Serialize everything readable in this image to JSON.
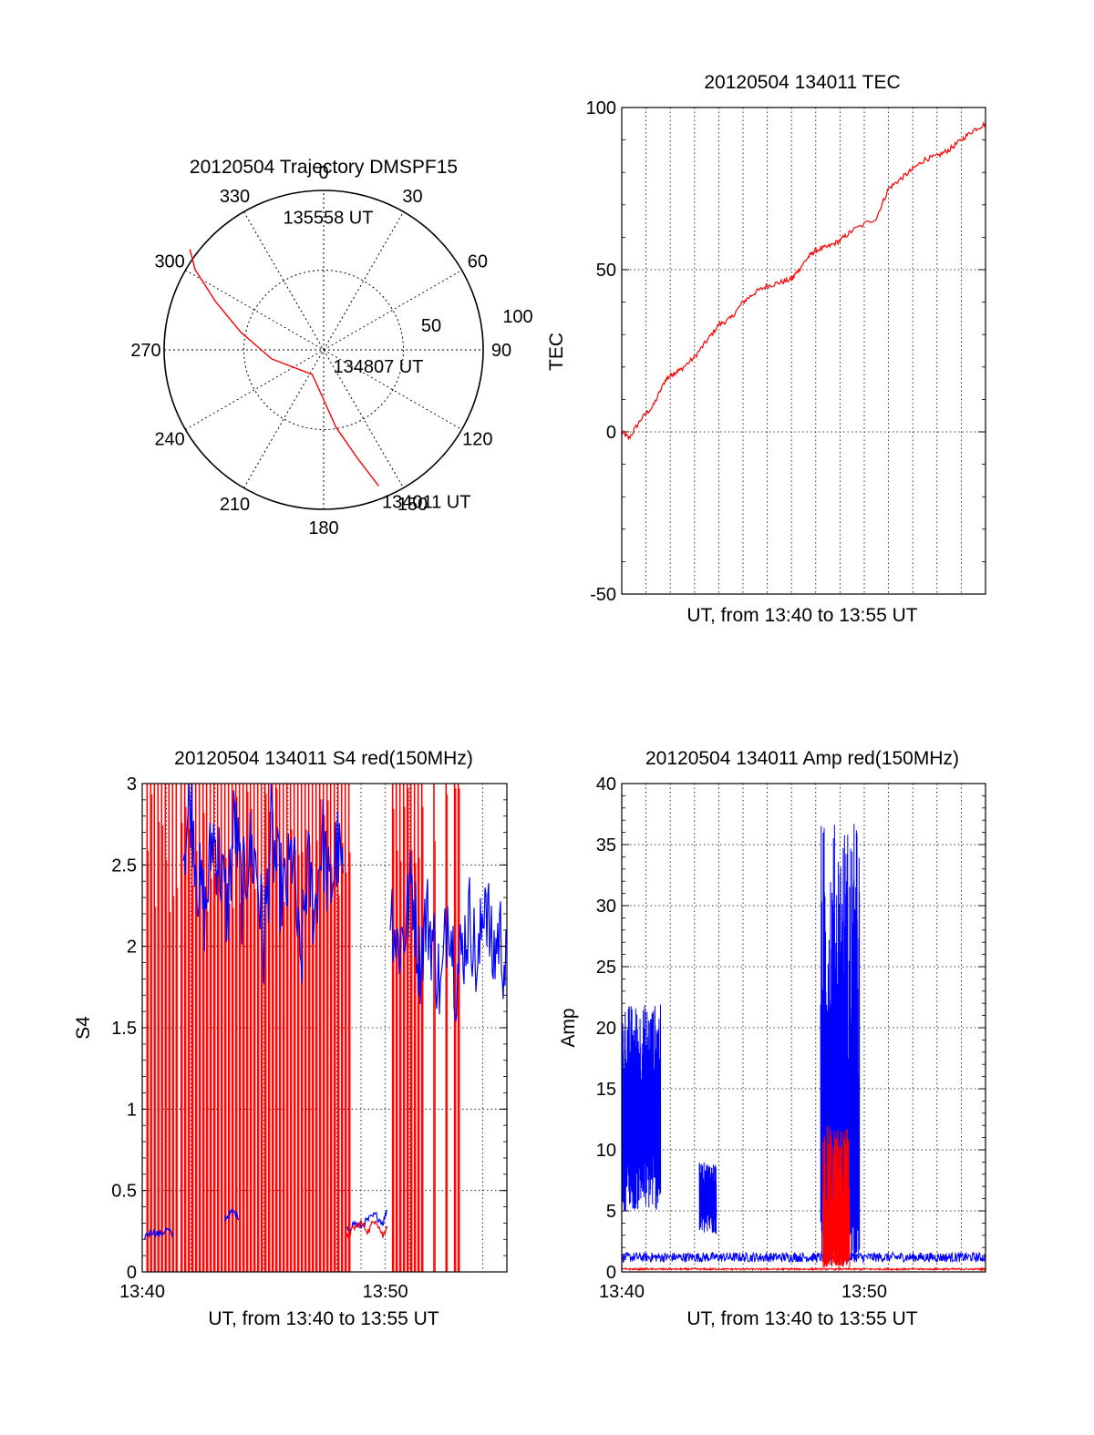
{
  "colors": {
    "red": "#ff0000",
    "blue": "#0000ff",
    "grid": "#000000"
  },
  "chart_data": [
    {
      "id": "polar",
      "type": "polar-trajectory",
      "title": "20120504 Trajectory DMSPF15",
      "azimuth_labels": [
        "0",
        "30",
        "60",
        "90",
        "120",
        "150",
        "180",
        "210",
        "240",
        "270",
        "300",
        "330"
      ],
      "radial_labels": [
        "50",
        "100"
      ],
      "radial_max": 100,
      "trajectory": [
        {
          "az": 158,
          "r": 92
        },
        {
          "az": 163,
          "r": 70
        },
        {
          "az": 171,
          "r": 49
        },
        {
          "az": 181,
          "r": 30
        },
        {
          "az": 205,
          "r": 17
        },
        {
          "az": 260,
          "r": 33
        },
        {
          "az": 282,
          "r": 53
        },
        {
          "az": 294,
          "r": 74
        },
        {
          "az": 302,
          "r": 95
        },
        {
          "az": 307,
          "r": 105
        }
      ],
      "annotations": [
        {
          "text": "135558 UT",
          "az": 343,
          "r": 87
        },
        {
          "text": "134807 UT",
          "az": 150,
          "r": 12
        },
        {
          "text": "134011 UT",
          "az": 159,
          "r": 102
        }
      ]
    },
    {
      "id": "tec",
      "type": "line",
      "title": "20120504 134011 TEC",
      "xlabel": "UT, from 13:40 to 13:55 UT",
      "ylabel": "TEC",
      "ylim": [
        -50,
        100
      ],
      "yticks": [
        "100",
        "50",
        "0",
        "-50"
      ],
      "xlim_minutes": [
        0,
        15
      ],
      "grid": true,
      "series": [
        {
          "color": "red",
          "x": [
            0,
            0.3,
            0.8,
            1.3,
            1.8,
            2.1,
            2.4,
            3.0,
            3.5,
            4.0,
            4.5,
            5.0,
            5.5,
            6.0,
            6.5,
            7.0,
            7.3,
            7.7,
            8.0,
            8.5,
            9.0,
            9.5,
            10.5,
            11.0,
            11.5,
            12.0,
            12.5,
            13.0,
            13.5,
            14.0,
            14.5,
            15.0
          ],
          "y": [
            0,
            -2,
            4,
            8,
            16,
            18,
            19,
            23,
            28,
            33,
            35,
            40,
            43,
            45,
            46,
            47,
            50,
            54,
            56,
            57,
            59,
            62,
            66,
            75,
            78,
            81,
            84,
            85,
            87,
            90,
            93,
            95
          ]
        }
      ]
    },
    {
      "id": "s4",
      "type": "line",
      "title": "20120504 134011 S4 red(150MHz)",
      "xlabel": "UT, from 13:40 to 13:55 UT",
      "ylabel": "S4",
      "ylim": [
        0,
        3
      ],
      "yticks": [
        "3",
        "2.5",
        "2",
        "1.5",
        "1",
        "0.5",
        "0"
      ],
      "xticks": [
        "13:40",
        "13:50"
      ],
      "xlim_minutes": [
        0,
        15
      ],
      "grid": true,
      "red_spikes_x": [
        0.2,
        0.35,
        0.5,
        0.65,
        0.8,
        0.95,
        1.1,
        1.25,
        1.4,
        1.6,
        1.75,
        1.9,
        2.05,
        2.2,
        2.35,
        2.5,
        2.65,
        2.8,
        2.95,
        3.1,
        3.25,
        3.4,
        3.55,
        3.7,
        3.85,
        4.0,
        4.15,
        4.3,
        4.45,
        4.6,
        4.75,
        4.9,
        5.05,
        5.2,
        5.35,
        5.5,
        5.65,
        5.8,
        5.95,
        6.1,
        6.25,
        6.4,
        6.55,
        6.7,
        6.85,
        7.0,
        7.15,
        7.3,
        7.45,
        7.6,
        7.75,
        7.9,
        8.05,
        8.2,
        8.35,
        8.5,
        10.3,
        10.45,
        10.6,
        10.75,
        10.9,
        11.05,
        11.2,
        11.35,
        11.5,
        12.0,
        12.5,
        12.85,
        13.0
      ],
      "series": [
        {
          "color": "blue",
          "segments": [
            {
              "x": [
                0.1,
                0.4,
                0.7,
                1.0,
                1.3
              ],
              "y": [
                0.22,
                0.25,
                0.23,
                0.26,
                0.22
              ]
            },
            {
              "x": [
                3.4,
                3.7,
                4.0
              ],
              "y": [
                0.33,
                0.37,
                0.34
              ]
            },
            {
              "x": [
                1.7,
                2.0,
                2.3,
                2.6,
                2.9,
                3.2,
                3.5,
                3.8,
                4.1,
                4.4,
                4.7,
                5.0,
                5.3,
                5.6,
                5.9,
                6.2,
                6.5,
                6.8,
                7.1,
                7.4,
                7.7,
                8.0,
                8.3
              ],
              "y": [
                2.6,
                2.9,
                2.4,
                2.2,
                2.7,
                2.5,
                2.2,
                2.8,
                2.3,
                2.6,
                2.5,
                2.0,
                2.7,
                2.4,
                2.3,
                2.6,
                1.8,
                2.5,
                2.2,
                2.7,
                2.3,
                2.6,
                2.4
              ]
            },
            {
              "x": [
                8.4,
                8.7,
                9.0,
                9.3,
                9.6,
                9.9,
                10.1
              ],
              "y": [
                0.25,
                0.3,
                0.28,
                0.32,
                0.35,
                0.3,
                0.4
              ]
            },
            {
              "x": [
                10.2,
                10.5,
                10.8,
                11.1,
                11.4,
                11.7,
                12.0,
                12.3,
                12.6,
                12.9,
                13.2,
                13.5,
                13.8,
                14.1,
                14.4,
                14.7,
                15.0
              ],
              "y": [
                2.3,
                2.0,
                2.1,
                2.4,
                1.9,
                2.2,
                2.0,
                1.7,
                2.3,
                1.8,
                2.0,
                2.2,
                1.8,
                2.4,
                1.9,
                2.1,
                1.8
              ]
            }
          ]
        },
        {
          "color": "red",
          "segments": [
            {
              "x": [
                8.4,
                8.7,
                9.0,
                9.3,
                9.6,
                9.9,
                10.1
              ],
              "y": [
                0.2,
                0.27,
                0.3,
                0.25,
                0.33,
                0.22,
                0.3
              ]
            }
          ]
        }
      ]
    },
    {
      "id": "amp",
      "type": "line",
      "title": "20120504 134011 Amp red(150MHz)",
      "xlabel": "UT, from 13:40 to 13:55 UT",
      "ylabel": "Amp",
      "ylim": [
        0,
        40
      ],
      "yticks": [
        "40",
        "35",
        "30",
        "25",
        "20",
        "15",
        "10",
        "5",
        "0"
      ],
      "xticks": [
        "13:40",
        "13:50"
      ],
      "xlim_minutes": [
        0,
        15
      ],
      "grid": true,
      "series": [
        {
          "color": "blue",
          "bursts": [
            {
              "x0": 0.0,
              "x1": 1.6,
              "low": 5,
              "high": 22,
              "mid": 14
            },
            {
              "x0": 3.2,
              "x1": 3.9,
              "low": 3,
              "high": 9,
              "mid": 7
            },
            {
              "x0": 8.2,
              "x1": 9.8,
              "low": 1,
              "high": 37,
              "mid": 12
            }
          ],
          "baseline": 0.8
        },
        {
          "color": "red",
          "bursts": [
            {
              "x0": 8.3,
              "x1": 9.4,
              "low": 0.3,
              "high": 12,
              "mid": 3
            }
          ],
          "baseline": 0.15
        }
      ]
    }
  ]
}
